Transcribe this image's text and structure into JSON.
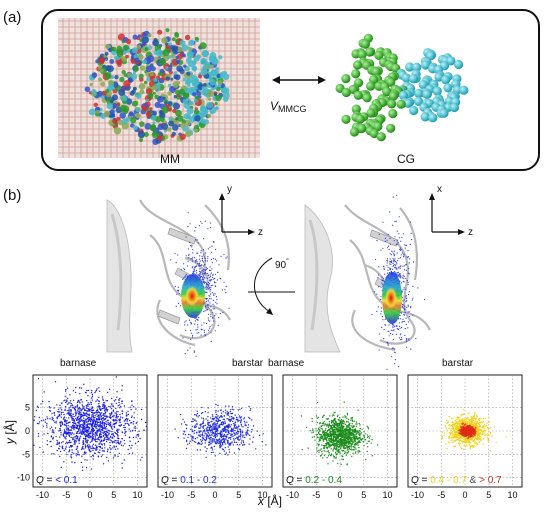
{
  "panel_a": {
    "label": "(a)",
    "left_name": "MM",
    "right_name": "CG",
    "coupling_symbol": "V",
    "coupling_subscript": "MMCG"
  },
  "panel_b": {
    "label": "(b)",
    "axes_left": {
      "vertical": "y",
      "horizontal": "z"
    },
    "axes_right": {
      "vertical": "x",
      "horizontal": "z"
    },
    "rotation": "90",
    "rotation_degree": "°",
    "left_view_labels": {
      "left": "barnase",
      "right": "barstar"
    },
    "right_view_labels": {
      "left": "barnase",
      "right": "barstar"
    }
  },
  "chart_data": {
    "type": "scatter",
    "xlabel": "x",
    "xlabel_unit": " [Å]",
    "ylabel": "y",
    "ylabel_unit": " [Å]",
    "xlim": [
      -12,
      12
    ],
    "ylim": [
      -12,
      12
    ],
    "x_ticks": [
      -10,
      -5,
      0,
      5,
      10
    ],
    "y_ticks": [
      -10,
      -5,
      0,
      5
    ],
    "grid": true,
    "panels": [
      {
        "q_prefix": "Q",
        "q_eq": " = ",
        "q_range": "< 0.1",
        "color": "#1f22e0",
        "center": [
          0,
          1
        ],
        "spread": [
          4.6,
          3.2
        ]
      },
      {
        "q_prefix": "Q",
        "q_eq": " = ",
        "q_range": "0.1 - 0.2",
        "color": "#2430e0",
        "center": [
          1,
          0
        ],
        "spread": [
          3.2,
          2.2
        ]
      },
      {
        "q_prefix": "Q",
        "q_eq": " = ",
        "q_range": "0.2 - 0.4",
        "color": "#1a8c1a",
        "center": [
          0,
          -1
        ],
        "spread": [
          2.4,
          2.0
        ]
      },
      {
        "q_prefix": "Q",
        "q_eq": " = ",
        "q_range": "0.4 - 0.7",
        "q_sep": " & ",
        "q_range2": "> 0.7",
        "color": "#f2d21a",
        "color2": "#e02a1a",
        "color_sep": "#555555",
        "center": [
          0.5,
          0
        ],
        "spread": [
          1.9,
          1.4
        ]
      }
    ]
  },
  "colors": {
    "membrane": "#cfa49a",
    "cg_green": "#33bb22",
    "cg_cyan": "#33c8d8",
    "ribbon": "#cccccc"
  }
}
